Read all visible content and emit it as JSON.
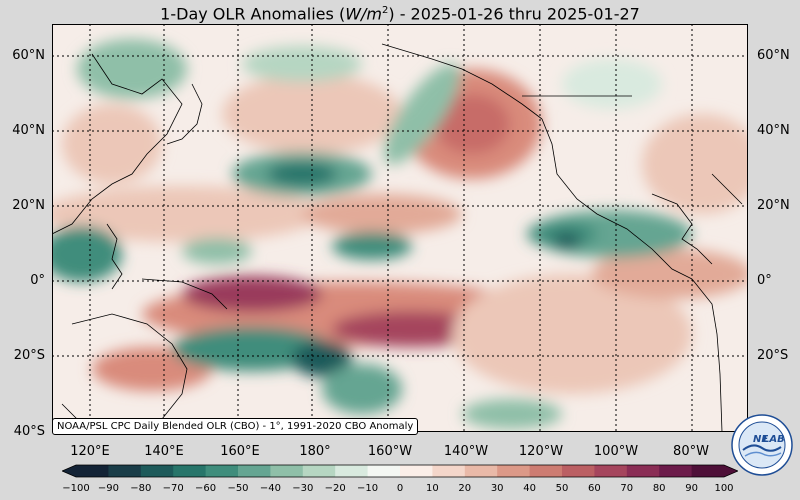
{
  "title": {
    "prefix": "1-Day OLR Anomalies (",
    "unit_base": "W/m",
    "unit_exp": "2",
    "suffix": ") - 2025-01-26 thru 2025-01-27"
  },
  "lat_labels": [
    "60°N",
    "40°N",
    "20°N",
    "0°",
    "20°S",
    "40°S"
  ],
  "lon_labels": [
    "120°E",
    "140°E",
    "160°E",
    "180°",
    "160°W",
    "140°W",
    "120°W",
    "100°W",
    "80°W"
  ],
  "source_note": "NOAA/PSL CPC Daily Blended OLR (CBO) - 1°, 1991-2020 CBO Anomaly",
  "colorbar": {
    "ticks": [
      "−100",
      "−90",
      "−80",
      "−70",
      "−60",
      "−50",
      "−40",
      "−30",
      "−20",
      "−10",
      "0",
      "10",
      "20",
      "30",
      "40",
      "50",
      "60",
      "70",
      "80",
      "90",
      "100"
    ],
    "colors": [
      "#132336",
      "#1a3d48",
      "#1d5a5a",
      "#27756a",
      "#3f8d7c",
      "#65a592",
      "#8fbfa8",
      "#b6d6c2",
      "#d9eadf",
      "#f4f7f3",
      "#fbeee8",
      "#f4d6ca",
      "#e9b9a8",
      "#dc9988",
      "#cd7c72",
      "#bb5f63",
      "#a5455d",
      "#8a2d55",
      "#6c1b4a",
      "#4e0f38"
    ]
  },
  "logo": {
    "text_top": "NE",
    "text_bottom": "LAB",
    "ring_text": "NOAA PHYSICAL SCIENCES LABORATORY"
  },
  "colors": {
    "background": "#d9d9d9",
    "neutral": "#f6ede8",
    "positive_light": "#ecc7b8",
    "positive_mid": "#d98b7c",
    "positive_strong": "#9a3a5c",
    "negative_light": "#c6ddcc",
    "negative_mid": "#5fa08c",
    "negative_strong": "#1d5a5a"
  }
}
